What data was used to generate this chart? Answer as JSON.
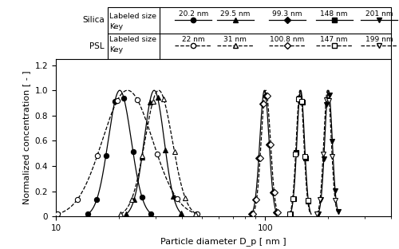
{
  "xlabel": "Particle diameter D_p [ nm ]",
  "ylabel": "Normalized concentration [ - ]",
  "xlim_log": [
    1.0,
    2.602
  ],
  "ylim": [
    0,
    1.25
  ],
  "yticks": [
    0,
    0.2,
    0.4,
    0.6,
    0.8,
    1.0,
    1.2
  ],
  "silica_sizes_label": [
    "20.2 nm",
    "29.5 nm",
    "99.3 nm",
    "148 nm",
    "201 nm"
  ],
  "psl_sizes_label": [
    "22 nm",
    "31 nm",
    "100.8 nm",
    "147 nm",
    "199 nm"
  ],
  "silica_peaks": [
    20.2,
    29.5,
    99.3,
    148,
    201
  ],
  "psl_peaks": [
    22,
    31,
    100.8,
    147,
    199
  ],
  "silica_sigma": [
    0.055,
    0.048,
    0.022,
    0.018,
    0.018
  ],
  "psl_sigma": [
    0.12,
    0.065,
    0.022,
    0.018,
    0.018
  ],
  "silica_markers": [
    "o",
    "^",
    "D",
    "s",
    "v"
  ],
  "psl_markers": [
    "o",
    "^",
    "D",
    "s",
    "v"
  ],
  "figsize": [
    5.0,
    3.12
  ],
  "dpi": 100
}
